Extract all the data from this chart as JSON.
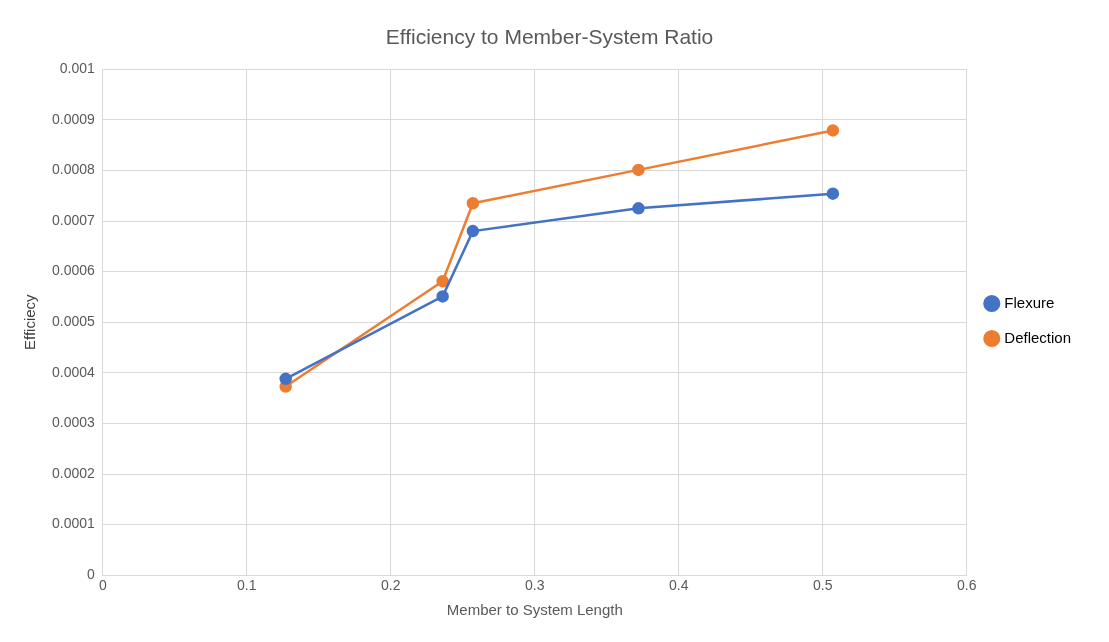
{
  "chart_data": {
    "type": "line",
    "title": "Efficiency to Member-System Ratio",
    "xlabel": "Member to System Length",
    "ylabel": "Efficiecy",
    "x": [
      0.127,
      0.236,
      0.257,
      0.372,
      0.507
    ],
    "series": [
      {
        "name": "Flexure",
        "color": "#4472c4",
        "values": [
          0.000388,
          0.000551,
          0.00068,
          0.000725,
          0.000754
        ]
      },
      {
        "name": "Deflection",
        "color": "#ed7d31",
        "values": [
          0.000373,
          0.000581,
          0.000735,
          0.000801,
          0.000879
        ]
      }
    ],
    "xlim": [
      0,
      0.6
    ],
    "xticks": [
      0,
      0.1,
      0.2,
      0.3,
      0.4,
      0.5,
      0.6
    ],
    "ylim": [
      0,
      0.001
    ],
    "yticks": [
      0,
      0.0001,
      0.0002,
      0.0003,
      0.0004,
      0.0005,
      0.0006,
      0.0007,
      0.0008,
      0.0009,
      0.001
    ],
    "grid": true,
    "legend": "right",
    "marker": "circle",
    "line_style": "solid"
  }
}
